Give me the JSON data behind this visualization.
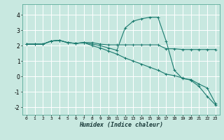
{
  "title": "",
  "xlabel": "Humidex (Indice chaleur)",
  "xlim": [
    -0.5,
    23.5
  ],
  "ylim": [
    -2.5,
    4.7
  ],
  "yticks": [
    -2,
    -1,
    0,
    1,
    2,
    3,
    4
  ],
  "xticks": [
    0,
    1,
    2,
    3,
    4,
    5,
    6,
    7,
    8,
    9,
    10,
    11,
    12,
    13,
    14,
    15,
    16,
    17,
    18,
    19,
    20,
    21,
    22,
    23
  ],
  "bg_color": "#c8e8e0",
  "grid_color_major": "#ffffff",
  "grid_color_minor": "#ddf0ea",
  "line_color": "#1a7a6e",
  "line1_x": [
    0,
    1,
    2,
    3,
    4,
    5,
    6,
    7,
    8,
    9,
    10,
    11,
    12,
    13,
    14,
    15,
    16,
    17,
    18,
    19,
    20,
    21,
    22,
    23
  ],
  "line1_y": [
    2.1,
    2.1,
    2.1,
    2.3,
    2.35,
    2.2,
    2.15,
    2.2,
    2.2,
    2.1,
    2.05,
    2.05,
    2.05,
    2.05,
    2.05,
    2.05,
    2.05,
    1.8,
    1.8,
    1.75,
    1.75,
    1.75,
    1.75,
    1.75
  ],
  "line2_x": [
    0,
    1,
    2,
    3,
    4,
    5,
    6,
    7,
    8,
    9,
    10,
    11,
    12,
    13,
    14,
    15,
    16,
    17,
    18,
    19,
    20,
    21,
    22,
    23
  ],
  "line2_y": [
    2.1,
    2.1,
    2.1,
    2.3,
    2.35,
    2.2,
    2.15,
    2.2,
    2.1,
    2.0,
    1.85,
    1.7,
    3.15,
    3.6,
    3.75,
    3.85,
    3.85,
    2.3,
    0.4,
    -0.15,
    -0.2,
    -0.5,
    -0.75,
    -1.75
  ],
  "line3_x": [
    0,
    1,
    2,
    3,
    4,
    5,
    6,
    7,
    8,
    9,
    10,
    11,
    12,
    13,
    14,
    15,
    16,
    17,
    18,
    19,
    20,
    21,
    22,
    23
  ],
  "line3_y": [
    2.1,
    2.1,
    2.1,
    2.3,
    2.35,
    2.2,
    2.15,
    2.2,
    2.0,
    1.85,
    1.65,
    1.45,
    1.2,
    1.0,
    0.8,
    0.6,
    0.4,
    0.15,
    0.05,
    -0.1,
    -0.25,
    -0.65,
    -1.3,
    -1.85
  ]
}
